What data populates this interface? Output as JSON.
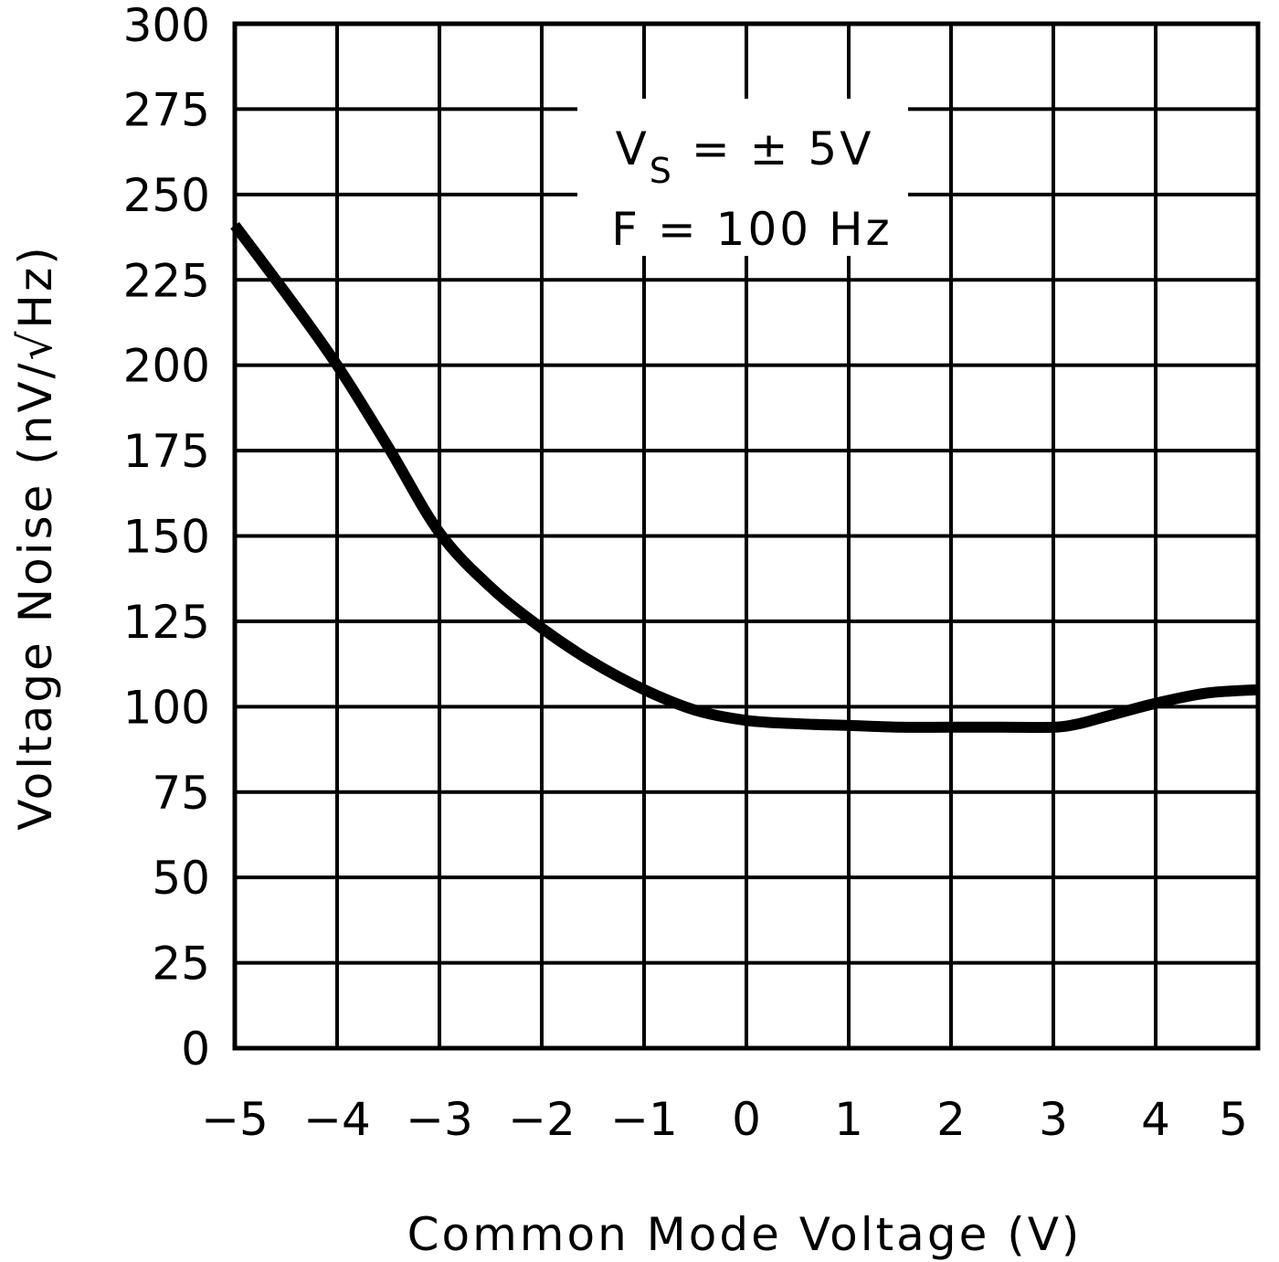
{
  "chart_data": {
    "type": "line",
    "xlabel": "Common Mode Voltage (V)",
    "ylabel": "Voltage Noise (nV/√Hz)",
    "xlim": [
      -5,
      5
    ],
    "ylim": [
      0,
      300
    ],
    "x_ticks": [
      "−5",
      "−4",
      "−3",
      "−2",
      "−1",
      "0",
      "1",
      "2",
      "3",
      "4",
      "5"
    ],
    "y_ticks": [
      "0",
      "25",
      "50",
      "75",
      "100",
      "125",
      "150",
      "175",
      "200",
      "225",
      "250",
      "275",
      "300"
    ],
    "grid": true,
    "annotation": {
      "line1_main": "V",
      "line1_sub": "S",
      "line1_rest": " = ± 5V",
      "line2": "F = 100 Hz"
    },
    "series": [
      {
        "x": [
          -5,
          -4.5,
          -4,
          -3.5,
          -3,
          -2.5,
          -2,
          -1.5,
          -1,
          -0.5,
          0,
          0.5,
          1,
          1.5,
          2,
          2.5,
          3,
          3.25,
          3.5,
          4,
          4.5,
          5
        ],
        "y": [
          241,
          221,
          200,
          176,
          151,
          135,
          123,
          113,
          105,
          99,
          96,
          95,
          94.5,
          94,
          94,
          94,
          94,
          95,
          97,
          101,
          104,
          105
        ]
      }
    ],
    "color": "#000000"
  }
}
